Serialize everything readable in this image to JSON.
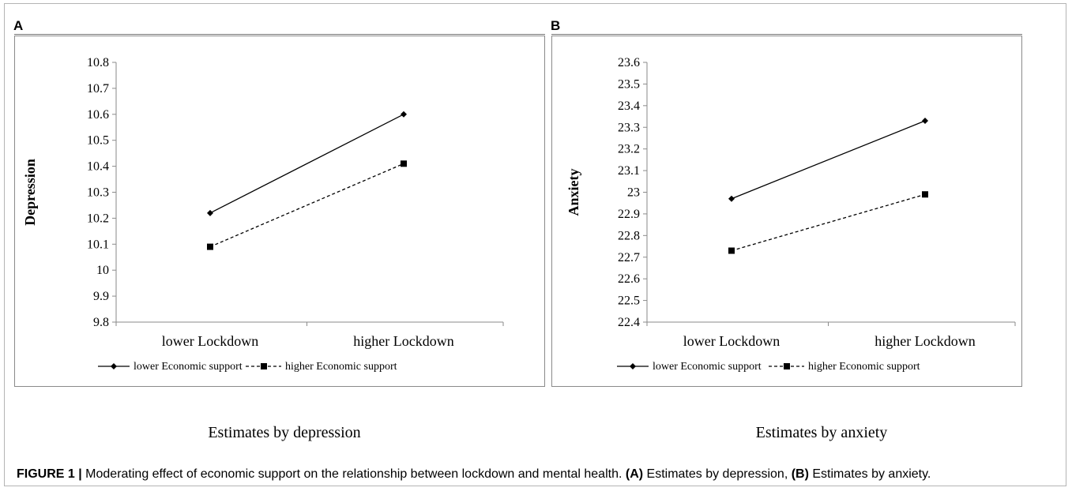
{
  "panels": [
    {
      "letter": "A",
      "estimate_label": "Estimates by depression"
    },
    {
      "letter": "B",
      "estimate_label": "Estimates by anxiety"
    }
  ],
  "caption": {
    "fig_label": "FIGURE 1 |",
    "text": " Moderating effect of economic support on the relationship between lockdown and mental health. ",
    "part_a_tag": "(A)",
    "part_a_text": " Estimates by depression, ",
    "part_b_tag": "(B)",
    "part_b_text": " Estimates by anxiety."
  },
  "colors": {
    "lines": "#000000",
    "axis": "#8a8a8a"
  },
  "chart_data": [
    {
      "type": "line",
      "panel": "A",
      "categories": [
        "lower Lockdown",
        "higher Lockdown"
      ],
      "ylabel": "Depression",
      "xlabel": "",
      "ylim": [
        9.8,
        10.8
      ],
      "yticks": [
        "9.8",
        "9.9",
        "10",
        "10.1",
        "10.2",
        "10.3",
        "10.4",
        "10.5",
        "10.6",
        "10.7",
        "10.8"
      ],
      "grid": false,
      "legend_position": "bottom",
      "series": [
        {
          "name": "lower Economic support",
          "values": [
            10.22,
            10.6
          ],
          "marker": "diamond",
          "dash": "solid"
        },
        {
          "name": "higher Economic support",
          "values": [
            10.09,
            10.41
          ],
          "marker": "square",
          "dash": "dashed"
        }
      ]
    },
    {
      "type": "line",
      "panel": "B",
      "categories": [
        "lower Lockdown",
        "higher Lockdown"
      ],
      "ylabel": "Anxiety",
      "xlabel": "",
      "ylim": [
        22.4,
        23.6
      ],
      "yticks": [
        "22.4",
        "22.5",
        "22.6",
        "22.7",
        "22.8",
        "22.9",
        "23",
        "23.1",
        "23.2",
        "23.3",
        "23.4",
        "23.5",
        "23.6"
      ],
      "grid": false,
      "legend_position": "bottom",
      "series": [
        {
          "name": "lower Economic support",
          "values": [
            22.97,
            23.33
          ],
          "marker": "diamond",
          "dash": "solid"
        },
        {
          "name": "higher Economic support",
          "values": [
            22.73,
            22.99
          ],
          "marker": "square",
          "dash": "dashed"
        }
      ]
    }
  ]
}
